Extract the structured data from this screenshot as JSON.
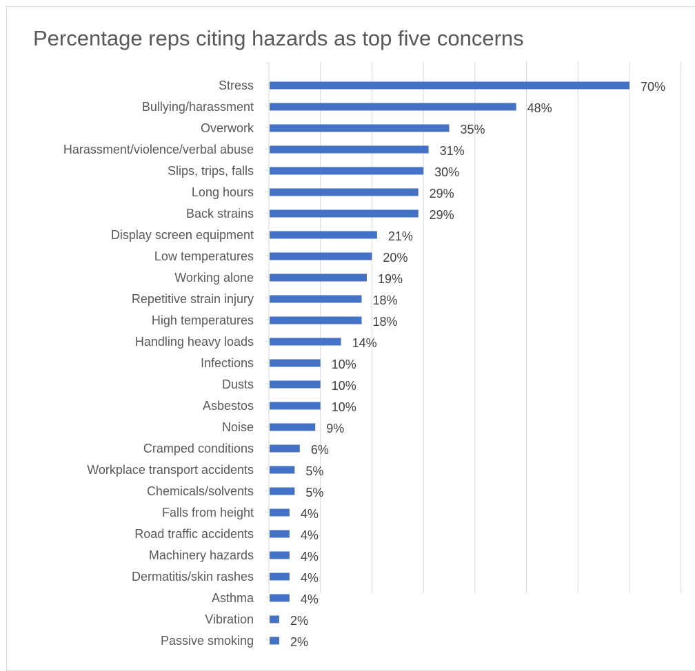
{
  "chart_data": {
    "type": "bar",
    "orientation": "horizontal",
    "title": "Percentage reps citing hazards as top five concerns",
    "xlabel": "",
    "ylabel": "",
    "xlim": [
      0,
      80
    ],
    "grid": true,
    "legend": "none",
    "bar_color": "#4472C4",
    "value_suffix": "%",
    "categories": [
      "Stress",
      "Bullying/harassment",
      "Overwork",
      "Harassment/violence/verbal abuse",
      "Slips, trips, falls",
      "Long hours",
      "Back strains",
      "Display screen equipment",
      "Low temperatures",
      "Working alone",
      "Repetitive strain injury",
      "High temperatures",
      "Handling heavy loads",
      "Infections",
      "Dusts",
      "Asbestos",
      "Noise",
      "Cramped conditions",
      "Workplace transport accidents",
      "Chemicals/solvents",
      "Falls from height",
      "Road traffic accidents",
      "Machinery hazards",
      "Dermatitis/skin rashes",
      "Asthma",
      "Vibration",
      "Passive smoking"
    ],
    "values": [
      70,
      48,
      35,
      31,
      30,
      29,
      29,
      21,
      20,
      19,
      18,
      18,
      14,
      10,
      10,
      10,
      9,
      6,
      5,
      5,
      4,
      4,
      4,
      4,
      4,
      2,
      2
    ]
  }
}
